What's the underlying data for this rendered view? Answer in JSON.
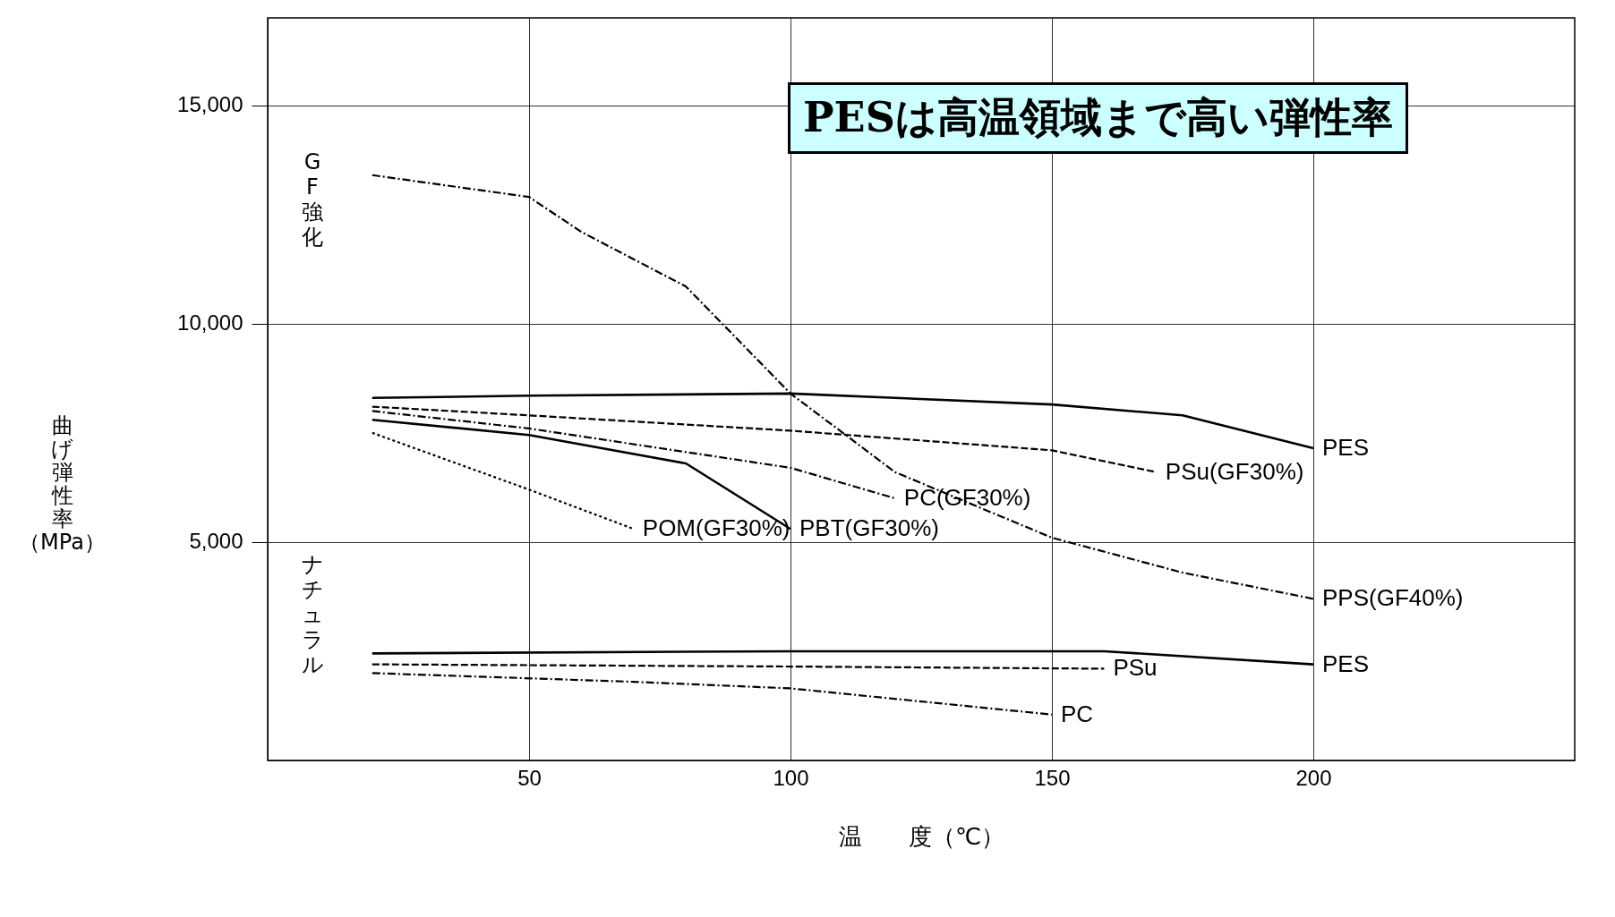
{
  "chart_data": {
    "type": "line",
    "xlabel": "温　　度（℃）",
    "ylabel": "曲げ弾性率（MPa）",
    "xlim": [
      0,
      250
    ],
    "ylim": [
      0,
      17000
    ],
    "xticks": [
      50,
      100,
      150,
      200
    ],
    "yticks": [
      {
        "value": 5000,
        "label": "5,000"
      },
      {
        "value": 10000,
        "label": "10,000"
      },
      {
        "value": 15000,
        "label": "15,000"
      }
    ],
    "grid": true,
    "marker": "none",
    "annotations": [
      "PESは高温領域まで高い弾性率",
      "GF強化",
      "ナチュラル"
    ],
    "series": [
      {
        "name": "PPS(GF40%)",
        "color": "#000000",
        "line_style": "dashdot",
        "x": [
          20,
          50,
          60,
          80,
          100,
          120,
          150,
          175,
          200
        ],
        "values": [
          13400,
          12900,
          12100,
          10850,
          8400,
          6600,
          5100,
          4300,
          3700
        ]
      },
      {
        "name": "PES",
        "color": "#000000",
        "line_style": "solid",
        "x": [
          20,
          50,
          100,
          150,
          175,
          200
        ],
        "values": [
          8300,
          8350,
          8400,
          8150,
          7900,
          7150
        ]
      },
      {
        "name": "PSu(GF30%)",
        "color": "#000000",
        "line_style": "dashed",
        "x": [
          20,
          50,
          100,
          150,
          170
        ],
        "values": [
          8100,
          7900,
          7550,
          7100,
          6600
        ]
      },
      {
        "name": "PC(GF30%)",
        "color": "#000000",
        "line_style": "dashdot",
        "x": [
          20,
          50,
          100,
          120
        ],
        "values": [
          8000,
          7600,
          6700,
          6000
        ]
      },
      {
        "name": "PBT(GF30%)",
        "color": "#000000",
        "line_style": "solid",
        "x": [
          20,
          50,
          80,
          100
        ],
        "values": [
          7800,
          7450,
          6800,
          5300
        ]
      },
      {
        "name": "POM(GF30%)",
        "color": "#000000",
        "line_style": "dotted",
        "x": [
          20,
          50,
          70
        ],
        "values": [
          7500,
          6200,
          5300
        ]
      },
      {
        "name": "PES",
        "color": "#000000",
        "line_style": "solid",
        "x": [
          20,
          100,
          150,
          160,
          200
        ],
        "values": [
          2450,
          2500,
          2500,
          2500,
          2200
        ]
      },
      {
        "name": "PSu",
        "color": "#000000",
        "line_style": "dashed",
        "x": [
          20,
          100,
          160
        ],
        "values": [
          2200,
          2150,
          2100
        ]
      },
      {
        "name": "PC",
        "color": "#000000",
        "line_style": "dashdot",
        "x": [
          20,
          70,
          100,
          150
        ],
        "values": [
          2000,
          1800,
          1650,
          1050
        ]
      }
    ]
  }
}
